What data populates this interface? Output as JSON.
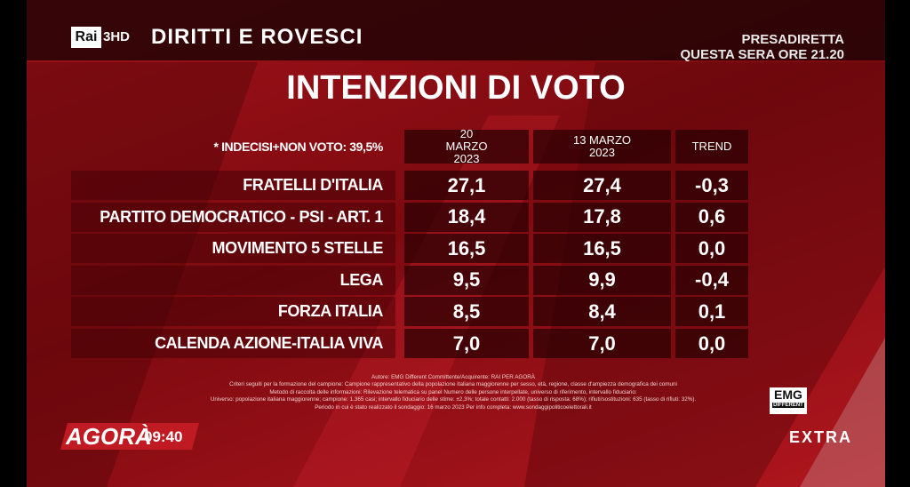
{
  "header": {
    "logo": "Rai",
    "channel": "3HD",
    "program": "DIRITTI E ROVESCI",
    "promo": [
      "PRESADIRETTA",
      "QUESTA SERA ORE 21.20"
    ]
  },
  "title": "INTENZIONI DI VOTO",
  "table": {
    "note": "* INDECISI+NON VOTO: 39,5%",
    "columns": [
      "20 MARZO 2023",
      "13 MARZO 2023",
      "TREND"
    ],
    "rows": [
      [
        "FRATELLI D'ITALIA",
        "27,1",
        "27,4",
        "-0,3"
      ],
      [
        "PARTITO DEMOCRATICO - PSI - ART. 1",
        "18,4",
        "17,8",
        "0,6"
      ],
      [
        "MOVIMENTO 5 STELLE",
        "16,5",
        "16,5",
        "0,0"
      ],
      [
        "LEGA",
        "9,5",
        "9,9",
        "-0,4"
      ],
      [
        "FORZA ITALIA",
        "8,5",
        "8,4",
        "0,1"
      ],
      [
        "CALENDA AZIONE-ITALIA VIVA",
        "7,0",
        "7,0",
        "0,0"
      ]
    ]
  },
  "footer": {
    "credits": [
      "Autore: EMG Different Committente/Acquirente: RAI PER AGORÀ",
      "Criteri seguiti per la formazione del campione: Campione rappresentativo della popolazione italiana maggiorenne per sesso, età, regione, classe d'ampiezza demografica dei comuni",
      "Metodo di raccolta delle informazioni: Rilevazione telematica su panel Numero delle persone interpellate, universo di riferimento, intervallo fiduciario:",
      "Universo: popolazione italiana maggiorenne; campione: 1.365 casi; intervallo fiduciario delle stime: ±2,3%; totale contatti: 2.000 (tasso di risposta: 68%); rifiuti/sostituzioni: 635 (tasso di rifiuti: 32%).",
      "Periodo in cui è stato realizzato il sondaggio: 16 marzo 2023   Per info completa: www.sondaggipoliticoelettorali.it"
    ],
    "show": "AGORÀ",
    "time": "09:40",
    "emg": "EMG",
    "emg_sub": "DIFFERENT",
    "extra": "EXTRA"
  }
}
